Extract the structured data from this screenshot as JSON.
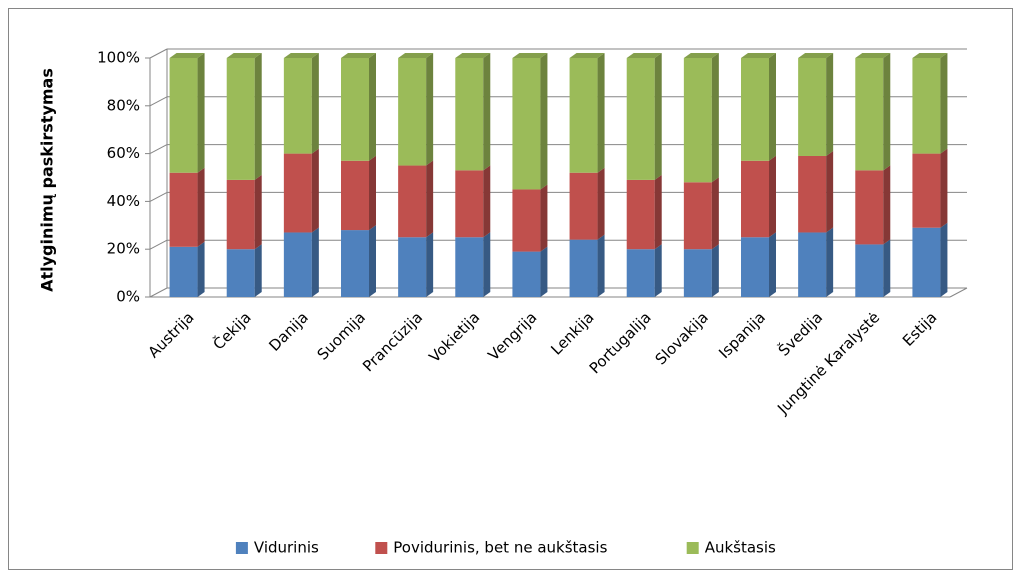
{
  "chart_data": {
    "type": "bar",
    "stacked": true,
    "y_label": "Atlyginimų paskirstymas",
    "categories": [
      "Austrija",
      "Čekija",
      "Danija",
      "Suomija",
      "Prancūzija",
      "Vokietija",
      "Vengrija",
      "Lenkija",
      "Portugalija",
      "Slovakija",
      "Ispanija",
      "Švedija",
      "Jungtinė Karalystė",
      "Estija"
    ],
    "series": [
      {
        "name": "Vidurinis",
        "color": "#4f81bd",
        "values": [
          21,
          20,
          27,
          28,
          25,
          25,
          19,
          24,
          20,
          20,
          25,
          27,
          22,
          29
        ]
      },
      {
        "name": "Povidurinis, bet ne aukštasis",
        "color": "#c0504d",
        "values": [
          31,
          29,
          33,
          29,
          30,
          28,
          26,
          28,
          29,
          28,
          32,
          32,
          31,
          31
        ]
      },
      {
        "name": "Aukštasis",
        "color": "#9bbb59",
        "values": [
          48,
          51,
          40,
          43,
          45,
          47,
          55,
          48,
          51,
          52,
          43,
          41,
          47,
          40
        ]
      }
    ],
    "ylim": [
      0,
      100
    ],
    "yticks": [
      {
        "value": 0,
        "label": "0%"
      },
      {
        "value": 20,
        "label": "20%"
      },
      {
        "value": 40,
        "label": "40%"
      },
      {
        "value": 60,
        "label": "60%"
      },
      {
        "value": 80,
        "label": "80%"
      },
      {
        "value": 100,
        "label": "100%"
      }
    ],
    "grid": true,
    "legend": "bottom"
  }
}
